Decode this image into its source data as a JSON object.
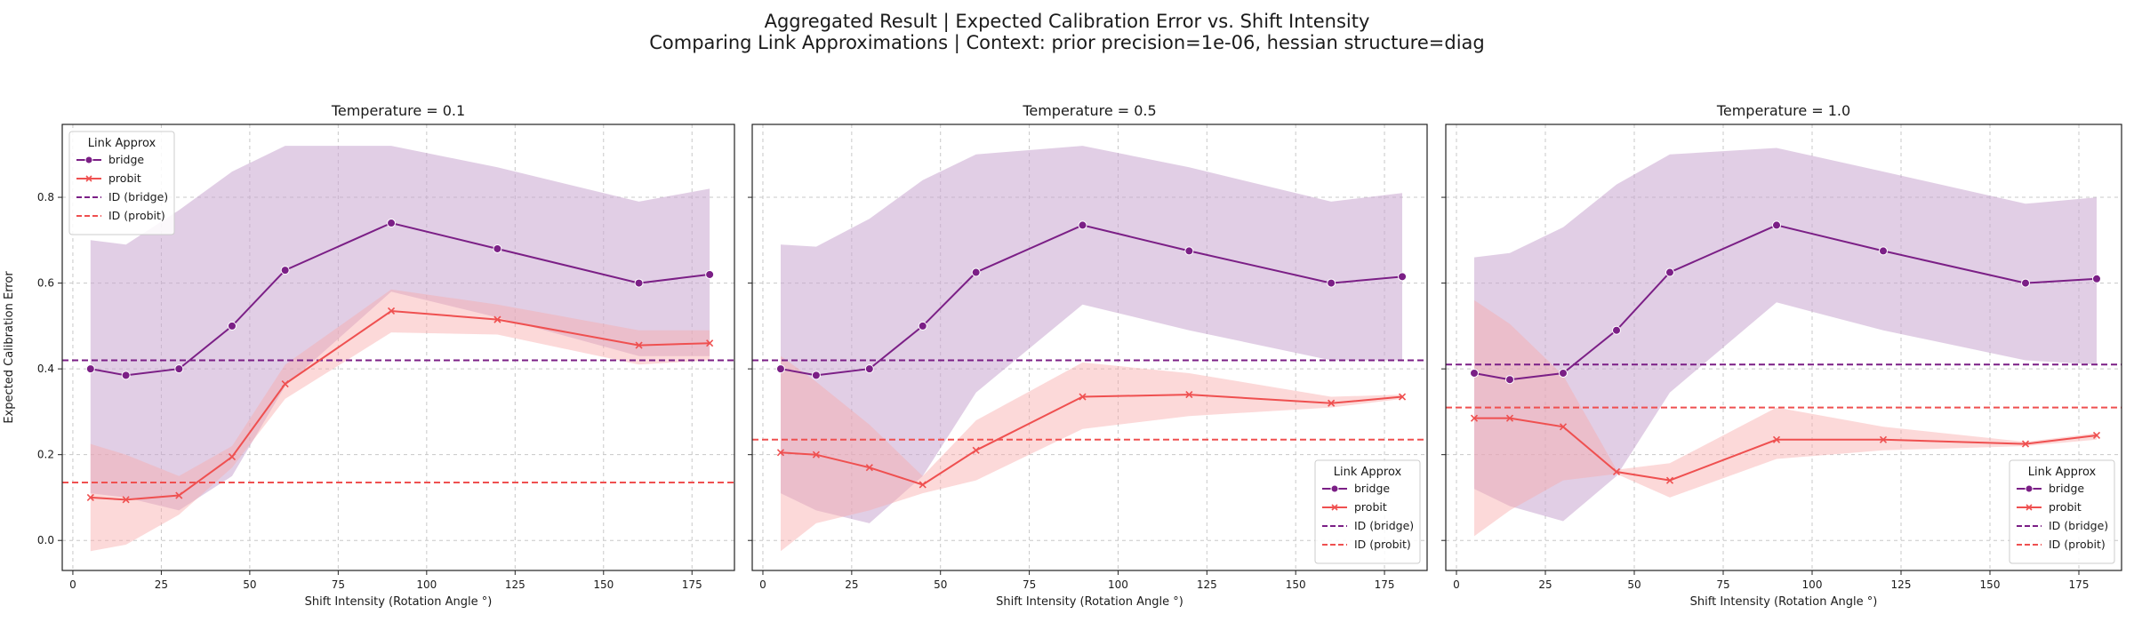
{
  "figure": {
    "title_line1": "Aggregated Result | Expected Calibration Error vs. Shift Intensity",
    "title_line2": "Comparing Link Approximations | Context: prior precision=1e-06, hessian structure=diag"
  },
  "colors": {
    "bridge": "#7b1f86",
    "bridge_band": "#c9a6cf",
    "probit": "#ef5050",
    "probit_band": "#f8aaaa",
    "grid": "#c8c8c8",
    "axis": "#222222"
  },
  "legend": {
    "title": "Link Approx",
    "entries": [
      "bridge",
      "probit",
      "ID (bridge)",
      "ID (probit)"
    ]
  },
  "chart_data": [
    {
      "type": "line",
      "title": "Temperature = 0.1",
      "xlabel": "Shift Intensity (Rotation Angle °)",
      "ylabel": "Expected Calibration Error",
      "xlim": [
        -3,
        187
      ],
      "ylim": [
        -0.07,
        0.97
      ],
      "x_ticks": [
        "0",
        "25",
        "50",
        "75",
        "100",
        "125",
        "150",
        "175"
      ],
      "y_ticks": [
        "0.0",
        "0.2",
        "0.4",
        "0.6",
        "0.8"
      ],
      "grid": true,
      "legend_position": "upper-left",
      "x": [
        5,
        15,
        30,
        45,
        60,
        90,
        120,
        160,
        180
      ],
      "series": [
        {
          "name": "bridge",
          "marker": "circle",
          "values": [
            0.4,
            0.385,
            0.4,
            0.5,
            0.63,
            0.74,
            0.68,
            0.6,
            0.62
          ],
          "lower": [
            0.11,
            0.1,
            0.07,
            0.15,
            0.36,
            0.58,
            0.52,
            0.43,
            0.43
          ],
          "upper": [
            0.7,
            0.69,
            0.77,
            0.86,
            0.92,
            0.92,
            0.87,
            0.79,
            0.82
          ]
        },
        {
          "name": "probit",
          "marker": "x",
          "values": [
            0.1,
            0.095,
            0.105,
            0.195,
            0.365,
            0.535,
            0.515,
            0.455,
            0.46
          ],
          "lower": [
            -0.025,
            -0.01,
            0.06,
            0.17,
            0.33,
            0.485,
            0.48,
            0.41,
            0.42
          ],
          "upper": [
            0.225,
            0.2,
            0.15,
            0.22,
            0.41,
            0.585,
            0.55,
            0.49,
            0.49
          ]
        }
      ],
      "reference_lines": [
        {
          "name": "ID (bridge)",
          "y": 0.42
        },
        {
          "name": "ID (probit)",
          "y": 0.135
        }
      ]
    },
    {
      "type": "line",
      "title": "Temperature = 0.5",
      "xlabel": "Shift Intensity (Rotation Angle °)",
      "ylabel": "",
      "xlim": [
        -3,
        187
      ],
      "ylim": [
        -0.07,
        0.97
      ],
      "x_ticks": [
        "0",
        "25",
        "50",
        "75",
        "100",
        "125",
        "150",
        "175"
      ],
      "y_ticks": [],
      "grid": true,
      "legend_position": "lower-right",
      "x": [
        5,
        15,
        30,
        45,
        60,
        90,
        120,
        160,
        180
      ],
      "series": [
        {
          "name": "bridge",
          "marker": "circle",
          "values": [
            0.4,
            0.385,
            0.4,
            0.5,
            0.625,
            0.735,
            0.675,
            0.6,
            0.615
          ],
          "lower": [
            0.11,
            0.07,
            0.04,
            0.15,
            0.345,
            0.55,
            0.49,
            0.42,
            0.42
          ],
          "upper": [
            0.69,
            0.685,
            0.75,
            0.84,
            0.9,
            0.92,
            0.87,
            0.79,
            0.81
          ]
        },
        {
          "name": "probit",
          "marker": "x",
          "values": [
            0.205,
            0.2,
            0.17,
            0.13,
            0.21,
            0.335,
            0.34,
            0.32,
            0.335
          ],
          "lower": [
            -0.025,
            0.04,
            0.07,
            0.11,
            0.14,
            0.26,
            0.29,
            0.31,
            0.33
          ],
          "upper": [
            0.43,
            0.37,
            0.27,
            0.15,
            0.28,
            0.415,
            0.39,
            0.335,
            0.34
          ]
        }
      ],
      "reference_lines": [
        {
          "name": "ID (bridge)",
          "y": 0.42
        },
        {
          "name": "ID (probit)",
          "y": 0.235
        }
      ]
    },
    {
      "type": "line",
      "title": "Temperature = 1.0",
      "xlabel": "Shift Intensity (Rotation Angle °)",
      "ylabel": "",
      "xlim": [
        -3,
        187
      ],
      "ylim": [
        -0.07,
        0.97
      ],
      "x_ticks": [
        "0",
        "25",
        "50",
        "75",
        "100",
        "125",
        "150",
        "175"
      ],
      "y_ticks": [],
      "grid": true,
      "legend_position": "lower-right",
      "x": [
        5,
        15,
        30,
        45,
        60,
        90,
        120,
        160,
        180
      ],
      "series": [
        {
          "name": "bridge",
          "marker": "circle",
          "values": [
            0.39,
            0.375,
            0.39,
            0.49,
            0.625,
            0.735,
            0.675,
            0.6,
            0.61
          ],
          "lower": [
            0.12,
            0.08,
            0.045,
            0.15,
            0.345,
            0.555,
            0.49,
            0.42,
            0.41
          ],
          "upper": [
            0.66,
            0.67,
            0.73,
            0.83,
            0.9,
            0.915,
            0.86,
            0.785,
            0.8
          ]
        },
        {
          "name": "probit",
          "marker": "x",
          "values": [
            0.285,
            0.285,
            0.265,
            0.16,
            0.14,
            0.235,
            0.235,
            0.225,
            0.245
          ],
          "lower": [
            0.01,
            0.07,
            0.14,
            0.155,
            0.1,
            0.19,
            0.21,
            0.22,
            0.235
          ],
          "upper": [
            0.56,
            0.505,
            0.385,
            0.165,
            0.18,
            0.31,
            0.265,
            0.23,
            0.25
          ]
        }
      ],
      "reference_lines": [
        {
          "name": "ID (bridge)",
          "y": 0.41
        },
        {
          "name": "ID (probit)",
          "y": 0.31
        }
      ]
    }
  ]
}
